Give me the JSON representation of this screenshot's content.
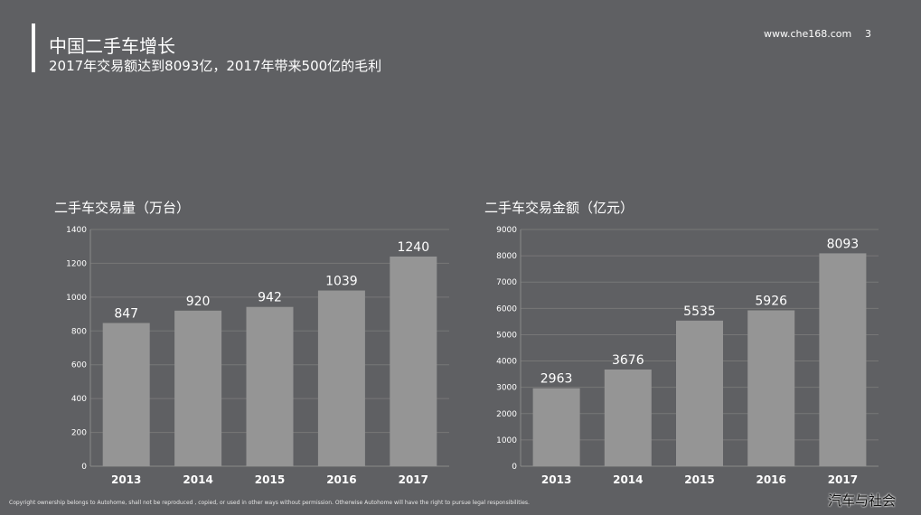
{
  "header": {
    "title": "中国二手车增长",
    "subtitle": "2017年交易额达到8093亿，2017年带来500亿的毛利",
    "site_url": "www.che168.com",
    "page_number": "3"
  },
  "footer": {
    "copyright": "Copyright ownership belongs to Autohome, shall not be reproduced , copied, or used in other ways without permission. Otherwise Autohome will have the right to pursue legal responsibilities.",
    "watermark": "汽车与社会"
  },
  "colors": {
    "background": "#5f6063",
    "bar": "#959595",
    "gridline": "#777777",
    "text": "#ffffff"
  },
  "chart_data": [
    {
      "type": "bar",
      "title": "二手车交易量（万台）",
      "categories": [
        "2013",
        "2014",
        "2015",
        "2016",
        "2017"
      ],
      "values": [
        847,
        920,
        942,
        1039,
        1240
      ],
      "ylim": [
        0,
        1400
      ],
      "yticks": [
        0,
        200,
        400,
        600,
        800,
        1000,
        1200,
        1400
      ],
      "grid": true,
      "data_labels": true
    },
    {
      "type": "bar",
      "title": "二手车交易金额（亿元）",
      "categories": [
        "2013",
        "2014",
        "2015",
        "2016",
        "2017"
      ],
      "values": [
        2963,
        3676,
        5535,
        5926,
        8093
      ],
      "ylim": [
        0,
        9000
      ],
      "yticks": [
        0,
        1000,
        2000,
        3000,
        4000,
        5000,
        6000,
        7000,
        8000,
        9000
      ],
      "grid": true,
      "data_labels": true
    }
  ]
}
